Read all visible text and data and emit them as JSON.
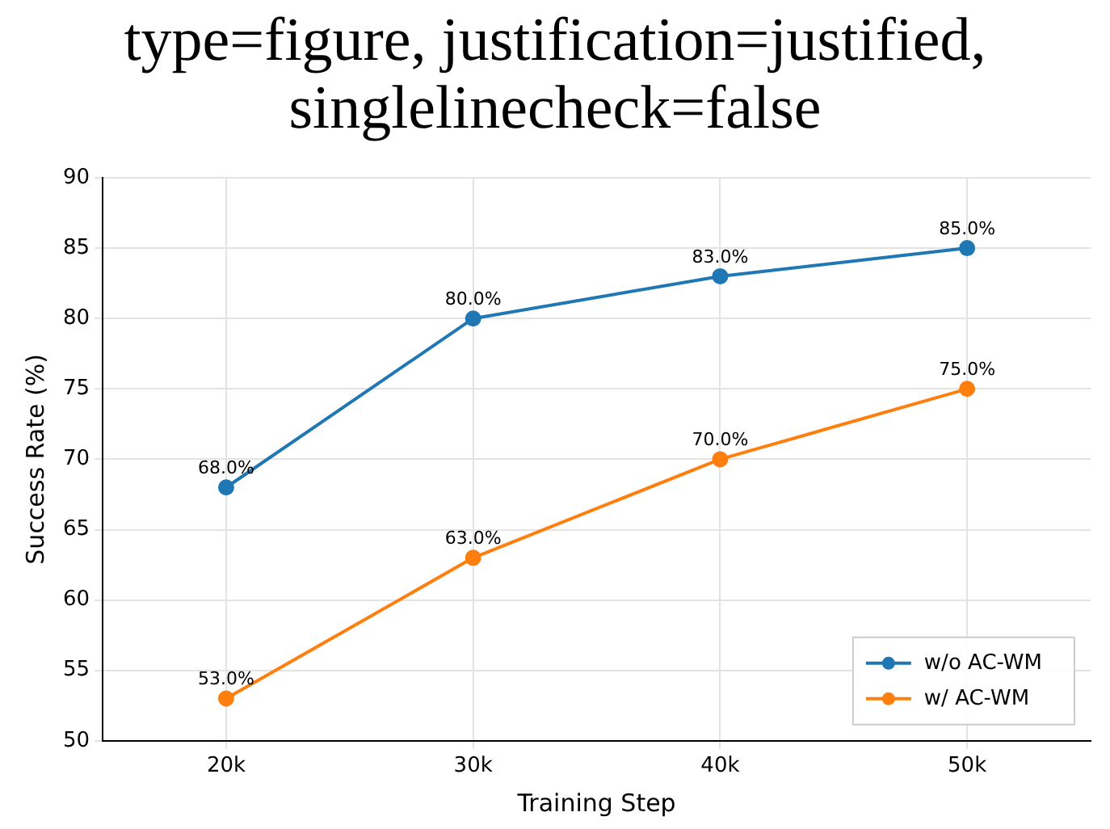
{
  "chart_data": {
    "type": "line",
    "title": "type=figure, justification=justified, singlelinecheck=false",
    "xlabel": "Training Step",
    "ylabel": "Success Rate (%)",
    "categories": [
      "20k",
      "30k",
      "40k",
      "50k"
    ],
    "series": [
      {
        "name": "w/o AC-WM",
        "color": "#1f77b4",
        "values": [
          68,
          80,
          83,
          85
        ],
        "value_labels": [
          "68.0%",
          "80.0%",
          "83.0%",
          "85.0%"
        ]
      },
      {
        "name": "w/ AC-WM",
        "color": "#ff7f0e",
        "values": [
          53,
          63,
          70,
          75
        ],
        "value_labels": [
          "53.0%",
          "63.0%",
          "70.0%",
          "75.0%"
        ]
      }
    ],
    "ylim": [
      50,
      90
    ],
    "yticks": [
      50,
      55,
      60,
      65,
      70,
      75,
      80,
      85,
      90
    ],
    "grid": true,
    "legend": "bottom right",
    "marker": "circle",
    "line_style": "solid"
  }
}
